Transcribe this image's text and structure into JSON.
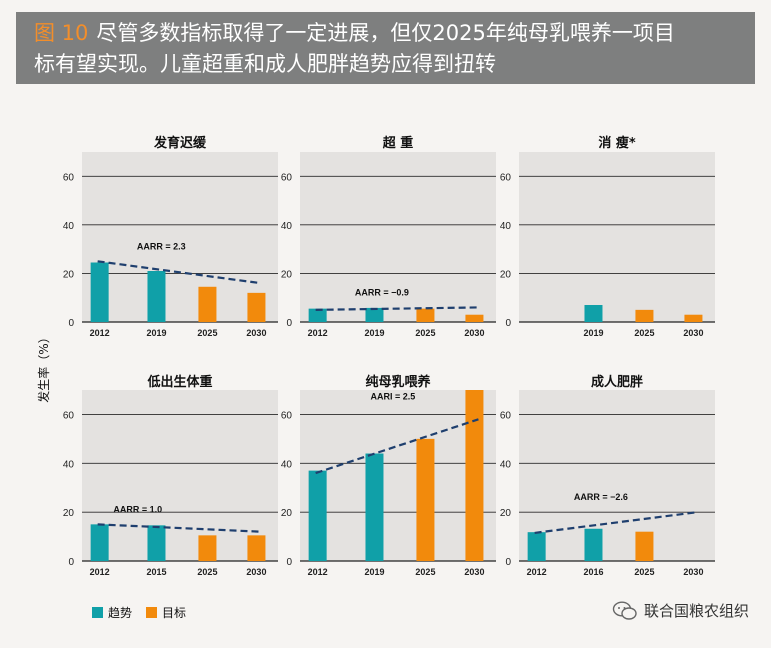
{
  "header": {
    "figure_label": "图 10",
    "title_line1": "尽管多数指标取得了一定进展，但仅2025年纯母乳喂养一项目",
    "title_line2": "标有望实现。儿童超重和成人肥胖趋势应得到扭转"
  },
  "ylabel": "发生率（%）",
  "legend": [
    {
      "label": "趋势",
      "color": "#10a0a8"
    },
    {
      "label": "目标",
      "color": "#f28a0c"
    }
  ],
  "watermark": "联合国粮农组织",
  "colors": {
    "trend": "#10a0a8",
    "target": "#f28a0c",
    "dash": "#1f3f6e",
    "panel": "#e4e2e0"
  },
  "chart_data": [
    {
      "type": "bar",
      "title": "发育迟缓",
      "ylim": [
        0,
        70
      ],
      "yticks": [
        0,
        20,
        40,
        60
      ],
      "categories": [
        "2012",
        "2019",
        "2025",
        "2030"
      ],
      "values": [
        24.5,
        21,
        14.5,
        12
      ],
      "kinds": [
        "trend",
        "trend",
        "target",
        "target"
      ],
      "annotation": "AARR = 2.3",
      "trendline": [
        25,
        16
      ]
    },
    {
      "type": "bar",
      "title": "超 重",
      "ylim": [
        0,
        70
      ],
      "yticks": [
        0,
        20,
        40,
        60
      ],
      "categories": [
        "2012",
        "2019",
        "2025",
        "2030"
      ],
      "values": [
        5.5,
        5.8,
        5.5,
        3
      ],
      "kinds": [
        "trend",
        "trend",
        "target",
        "target"
      ],
      "annotation": "AARR = −0.9",
      "trendline": [
        5,
        6
      ]
    },
    {
      "type": "bar",
      "title": "消 瘦*",
      "ylim": [
        0,
        70
      ],
      "yticks": [
        0,
        20,
        40,
        60
      ],
      "categories": [
        "",
        "2019",
        "2025",
        "2030"
      ],
      "values": [
        null,
        7,
        5,
        3
      ],
      "kinds": [
        "trend",
        "trend",
        "target",
        "target"
      ],
      "annotation": "",
      "trendline": null
    },
    {
      "type": "bar",
      "title": "低出生体重",
      "ylim": [
        0,
        70
      ],
      "yticks": [
        0,
        20,
        40,
        60
      ],
      "categories": [
        "2012",
        "2015",
        "2025",
        "2030"
      ],
      "values": [
        15,
        14.6,
        10.5,
        10.5
      ],
      "kinds": [
        "trend",
        "trend",
        "target",
        "target"
      ],
      "annotation": "AARR = 1.0",
      "trendline": [
        15,
        12
      ]
    },
    {
      "type": "bar",
      "title": "纯母乳喂养",
      "ylim": [
        0,
        70
      ],
      "yticks": [
        0,
        20,
        40,
        60
      ],
      "categories": [
        "2012",
        "2019",
        "2025",
        "2030"
      ],
      "values": [
        37,
        44,
        50,
        70
      ],
      "kinds": [
        "trend",
        "trend",
        "target",
        "target"
      ],
      "annotation": "AARI = 2.5",
      "trendline": [
        36,
        58
      ]
    },
    {
      "type": "bar",
      "title": "成人肥胖",
      "ylim": [
        0,
        70
      ],
      "yticks": [
        0,
        20,
        40,
        60
      ],
      "categories": [
        "2012",
        "2016",
        "2025",
        "2030"
      ],
      "values": [
        11.8,
        13.2,
        12,
        null
      ],
      "kinds": [
        "trend",
        "trend",
        "target",
        "target"
      ],
      "annotation": "AARR = −2.6",
      "trendline": [
        11.5,
        20
      ]
    }
  ]
}
